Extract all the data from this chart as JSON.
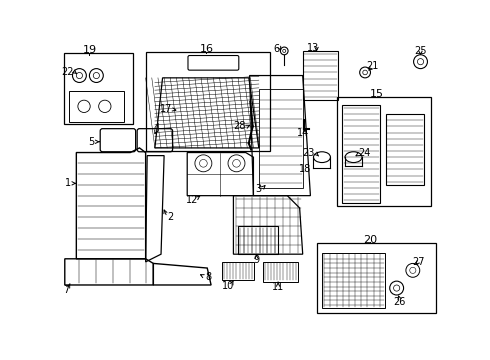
{
  "background_color": "#ffffff",
  "line_color": "#000000",
  "text_color": "#000000",
  "figsize": [
    4.9,
    3.6
  ],
  "dpi": 100
}
